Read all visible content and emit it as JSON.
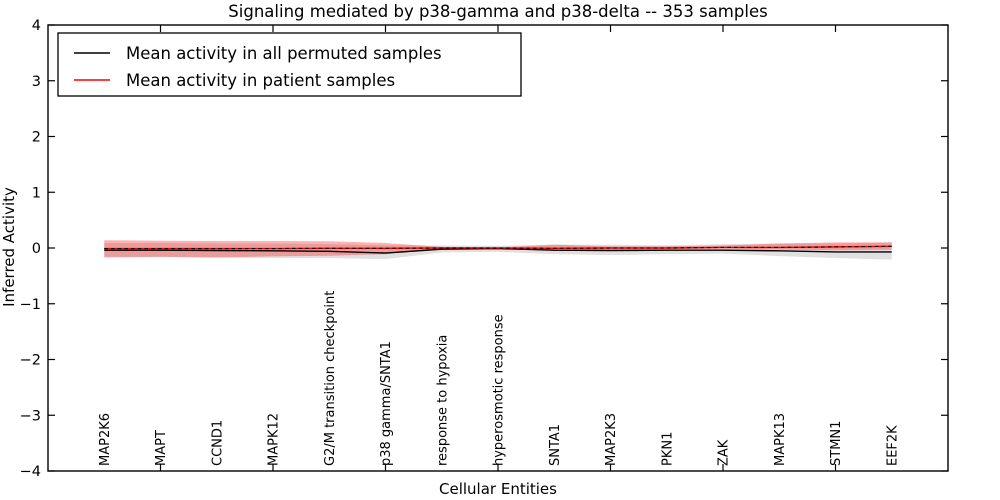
{
  "chart_data": {
    "type": "line",
    "title": "Signaling mediated by p38-gamma and p38-delta -- 353 samples",
    "xlabel": "Cellular Entities",
    "ylabel": "Inferred Activity",
    "ylim": [
      -4,
      4
    ],
    "yticks": [
      4,
      3,
      2,
      1,
      0,
      -1,
      -2,
      -3,
      -4
    ],
    "xlim": [
      0,
      16
    ],
    "xtick_positions": [
      2,
      4,
      6,
      8,
      10,
      12,
      14
    ],
    "grid": false,
    "categories": [
      "MAP2K6",
      "MAPT",
      "CCND1",
      "MAPK12",
      "G2/M transition checkpoint",
      "p38 gamma/SNTA1",
      "response to hypoxia",
      "hyperosmotic response",
      "SNTA1",
      "MAP2K3",
      "PKN1",
      "ZAK",
      "MAPK13",
      "STMN1",
      "EEF2K"
    ],
    "series": [
      {
        "name": "Mean activity in all permuted samples",
        "color": "#000000",
        "style": "solid",
        "values": [
          -0.04,
          -0.04,
          -0.045,
          -0.05,
          -0.06,
          -0.09,
          -0.02,
          -0.01,
          -0.04,
          -0.045,
          -0.04,
          -0.04,
          -0.05,
          -0.07,
          -0.07
        ]
      },
      {
        "name": "Mean activity in patient samples",
        "color": "#ff0000",
        "style": "solid",
        "dashed_black_overlay": true,
        "values": [
          -0.01,
          -0.01,
          -0.01,
          -0.01,
          -0.005,
          -0.005,
          0.0,
          0.0,
          -0.005,
          0.0,
          0.0,
          0.01,
          0.01,
          0.02,
          0.03
        ]
      }
    ],
    "bands": [
      {
        "name": "permuted samples range",
        "color": "rgba(0,0,0,0.12)",
        "upper": [
          0.09,
          0.09,
          0.08,
          0.08,
          0.07,
          0.05,
          0.045,
          0.04,
          0.06,
          0.06,
          0.05,
          0.07,
          0.08,
          0.08,
          0.1
        ],
        "lower": [
          -0.16,
          -0.16,
          -0.17,
          -0.18,
          -0.18,
          -0.2,
          -0.08,
          -0.07,
          -0.11,
          -0.125,
          -0.11,
          -0.1,
          -0.145,
          -0.18,
          -0.21
        ]
      },
      {
        "name": "patient samples range",
        "color": "rgba(255,0,0,0.30)",
        "upper": [
          0.14,
          0.13,
          0.125,
          0.125,
          0.12,
          0.09,
          0.02,
          0.01,
          0.06,
          0.03,
          0.03,
          0.045,
          0.08,
          0.1,
          0.1
        ],
        "lower": [
          -0.17,
          -0.16,
          -0.17,
          -0.15,
          -0.14,
          -0.11,
          -0.02,
          -0.01,
          -0.05,
          -0.03,
          -0.02,
          -0.01,
          -0.03,
          -0.04,
          -0.03
        ]
      }
    ],
    "legend": {
      "position": "upper-left",
      "entries": [
        {
          "label": "Mean activity in all permuted samples",
          "color": "#000000"
        },
        {
          "label": "Mean activity in patient samples",
          "color": "#ff0000"
        }
      ]
    }
  }
}
